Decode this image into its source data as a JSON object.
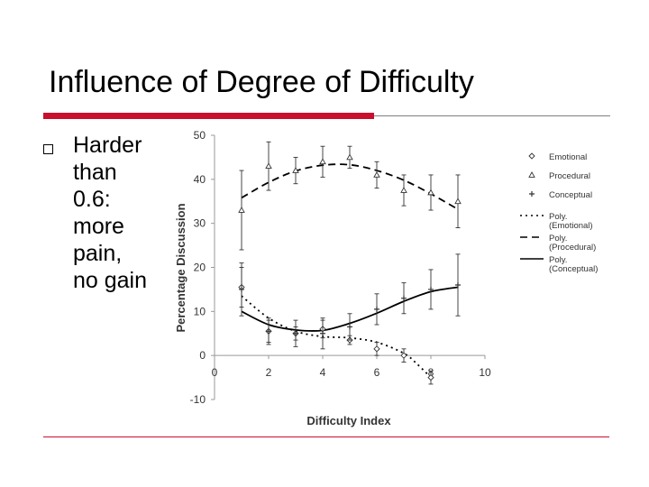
{
  "slide": {
    "title": "Influence of Degree of Difficulty",
    "bullet_lines": [
      "Harder",
      "than",
      "0.6:",
      "more",
      "pain,",
      "no gain"
    ]
  },
  "chart_data": {
    "type": "scatter",
    "xlabel": "Difficulty Index",
    "ylabel": "Percentage Discussion",
    "xlim": [
      0,
      10
    ],
    "ylim": [
      -10,
      50
    ],
    "x_ticks": [
      "0",
      "2",
      "4",
      "6",
      "8",
      "10"
    ],
    "y_ticks": [
      "-10",
      "0",
      "10",
      "20",
      "30",
      "40",
      "50"
    ],
    "grid": false,
    "legend_position": "right",
    "series": [
      {
        "name": "Emotional",
        "marker": "diamond",
        "x": [
          1,
          2,
          3,
          4,
          5,
          6,
          7,
          8
        ],
        "y": [
          15.5,
          5.5,
          5,
          6,
          3.5,
          1.5,
          0,
          -5
        ],
        "err": [
          4.5,
          2.5,
          1.5,
          2,
          1,
          1.5,
          1.5,
          1.5
        ]
      },
      {
        "name": "Procedural",
        "marker": "triangle",
        "x": [
          1,
          2,
          3,
          4,
          5,
          6,
          7,
          8,
          9
        ],
        "y": [
          33,
          43,
          42,
          44,
          45,
          41,
          37.5,
          37,
          35
        ],
        "err": [
          9,
          5.5,
          3,
          3.5,
          2.5,
          3,
          3.5,
          4,
          6
        ]
      },
      {
        "name": "Conceptual",
        "marker": "plus",
        "x": [
          1,
          2,
          3,
          4,
          5,
          6,
          7,
          8,
          9
        ],
        "y": [
          15,
          5.5,
          5,
          5,
          6.5,
          10.5,
          13,
          15,
          16
        ],
        "err": [
          6,
          3,
          3,
          3.5,
          3,
          3.5,
          3.5,
          4.5,
          7
        ]
      }
    ],
    "trendlines": [
      {
        "name": "Poly. (Emotional)",
        "style": "dotted",
        "x": [
          1,
          2,
          3,
          4,
          5,
          6,
          7,
          7.5,
          8
        ],
        "y": [
          13.5,
          8.5,
          5.5,
          4.3,
          4,
          3,
          0.5,
          -2,
          -5
        ]
      },
      {
        "name": "Poly. (Procedural)",
        "style": "dashed",
        "x": [
          1,
          2,
          3,
          4,
          5,
          6,
          7,
          8,
          9
        ],
        "y": [
          35.8,
          39.3,
          41.9,
          43.2,
          43.3,
          42,
          39.8,
          36.7,
          33.2
        ]
      },
      {
        "name": "Poly. (Conceptual)",
        "style": "solid",
        "x": [
          1,
          2,
          3,
          4,
          5,
          6,
          7,
          8,
          9
        ],
        "y": [
          10,
          7,
          5.8,
          5.7,
          7.3,
          9.6,
          12.3,
          14.5,
          15.5
        ]
      }
    ],
    "legend": [
      "Emotional",
      "Procedural",
      "Conceptual",
      "Poly. (Emotional)",
      "Poly. (Procedural)",
      "Poly. (Conceptual)"
    ]
  }
}
